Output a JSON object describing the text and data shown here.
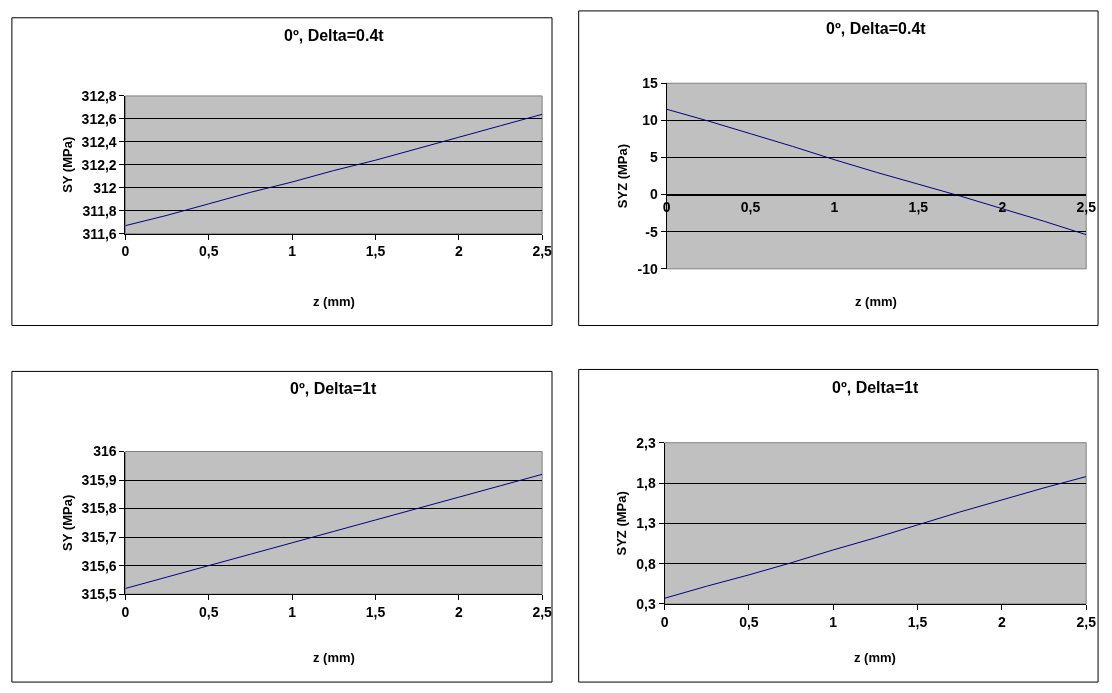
{
  "chart_data": [
    {
      "type": "line",
      "title": "0º, Delta=0.4t",
      "xlabel": "z (mm)",
      "ylabel": "SY (MPa)",
      "x": [
        0,
        0.25,
        0.5,
        0.75,
        1,
        1.25,
        1.5,
        1.75,
        2,
        2.25,
        2.5
      ],
      "series": [
        {
          "color": "#000080",
          "values": [
            311.67,
            311.76,
            311.86,
            311.96,
            312.05,
            312.15,
            312.24,
            312.34,
            312.44,
            312.54,
            312.64
          ]
        }
      ],
      "xlim": [
        0,
        2.5
      ],
      "xticks": [
        0,
        {
          "value": 0.5,
          "label": "0,5"
        },
        1,
        {
          "value": 1.5,
          "label": "1,5"
        },
        2,
        {
          "value": 2.5,
          "label": "2,5"
        }
      ],
      "ylim": [
        311.6,
        312.8
      ],
      "yticks": [
        {
          "value": 311.6,
          "label": "311,6"
        },
        {
          "value": 311.8,
          "label": "311,8"
        },
        312,
        {
          "value": 312.2,
          "label": "312,2"
        },
        {
          "value": 312.4,
          "label": "312,4"
        },
        {
          "value": 312.6,
          "label": "312,6"
        },
        {
          "value": 312.8,
          "label": "312,8"
        }
      ],
      "grid": "y",
      "marker": "none",
      "line_style": "solid"
    },
    {
      "type": "line",
      "title": "0º, Delta=0.4t",
      "xlabel": "z (mm)",
      "ylabel": "SYZ (MPa)",
      "x": [
        0,
        0.25,
        0.5,
        0.75,
        1,
        1.25,
        1.5,
        1.75,
        2,
        2.25,
        2.5
      ],
      "series": [
        {
          "color": "#000080",
          "values": [
            11.5,
            9.9,
            8.2,
            6.5,
            4.7,
            3.0,
            1.4,
            -0.2,
            -1.9,
            -3.6,
            -5.4
          ]
        }
      ],
      "xlim": [
        0,
        2.5
      ],
      "xticks": [
        0,
        {
          "value": 0.5,
          "label": "0,5"
        },
        1,
        {
          "value": 1.5,
          "label": "1,5"
        },
        2,
        {
          "value": 2.5,
          "label": "2,5"
        }
      ],
      "ylim": [
        -10,
        15
      ],
      "yticks": [
        -10,
        -5,
        0,
        5,
        10,
        15
      ],
      "grid": "y",
      "marker": "none",
      "line_style": "solid"
    },
    {
      "type": "line",
      "title": "0º, Delta=1t",
      "xlabel": "z (mm)",
      "ylabel": "SY (MPa)",
      "x": [
        0,
        0.25,
        0.5,
        0.75,
        1,
        1.25,
        1.5,
        1.75,
        2,
        2.25,
        2.5
      ],
      "series": [
        {
          "color": "#000080",
          "values": [
            315.52,
            315.56,
            315.6,
            315.64,
            315.68,
            315.72,
            315.76,
            315.8,
            315.84,
            315.88,
            315.92
          ]
        }
      ],
      "xlim": [
        0,
        2.5
      ],
      "xticks": [
        0,
        {
          "value": 0.5,
          "label": "0,5"
        },
        1,
        {
          "value": 1.5,
          "label": "1,5"
        },
        2,
        {
          "value": 2.5,
          "label": "2,5"
        }
      ],
      "ylim": [
        315.5,
        316
      ],
      "yticks": [
        {
          "value": 315.5,
          "label": "315,5"
        },
        {
          "value": 315.6,
          "label": "315,6"
        },
        {
          "value": 315.7,
          "label": "315,7"
        },
        {
          "value": 315.8,
          "label": "315,8"
        },
        {
          "value": 315.9,
          "label": "315,9"
        },
        316
      ],
      "grid": "y",
      "marker": "none",
      "line_style": "solid"
    },
    {
      "type": "line",
      "title": "0º, Delta=1t",
      "xlabel": "z (mm)",
      "ylabel": "SYZ (MPa)",
      "x": [
        0,
        0.25,
        0.5,
        0.75,
        1,
        1.25,
        1.5,
        1.75,
        2,
        2.25,
        2.5
      ],
      "series": [
        {
          "color": "#000080",
          "values": [
            0.37,
            0.52,
            0.66,
            0.81,
            0.97,
            1.12,
            1.28,
            1.44,
            1.59,
            1.74,
            1.88
          ]
        }
      ],
      "xlim": [
        0,
        2.5
      ],
      "xticks": [
        0,
        {
          "value": 0.5,
          "label": "0,5"
        },
        1,
        {
          "value": 1.5,
          "label": "1,5"
        },
        2,
        {
          "value": 2.5,
          "label": "2,5"
        }
      ],
      "ylim": [
        0.3,
        2.3
      ],
      "yticks": [
        {
          "value": 0.3,
          "label": "0,3"
        },
        {
          "value": 0.8,
          "label": "0,8"
        },
        {
          "value": 1.3,
          "label": "1,3"
        },
        {
          "value": 1.8,
          "label": "1,8"
        },
        {
          "value": 2.3,
          "label": "2,3"
        }
      ],
      "grid": "y",
      "marker": "none",
      "line_style": "solid"
    }
  ]
}
